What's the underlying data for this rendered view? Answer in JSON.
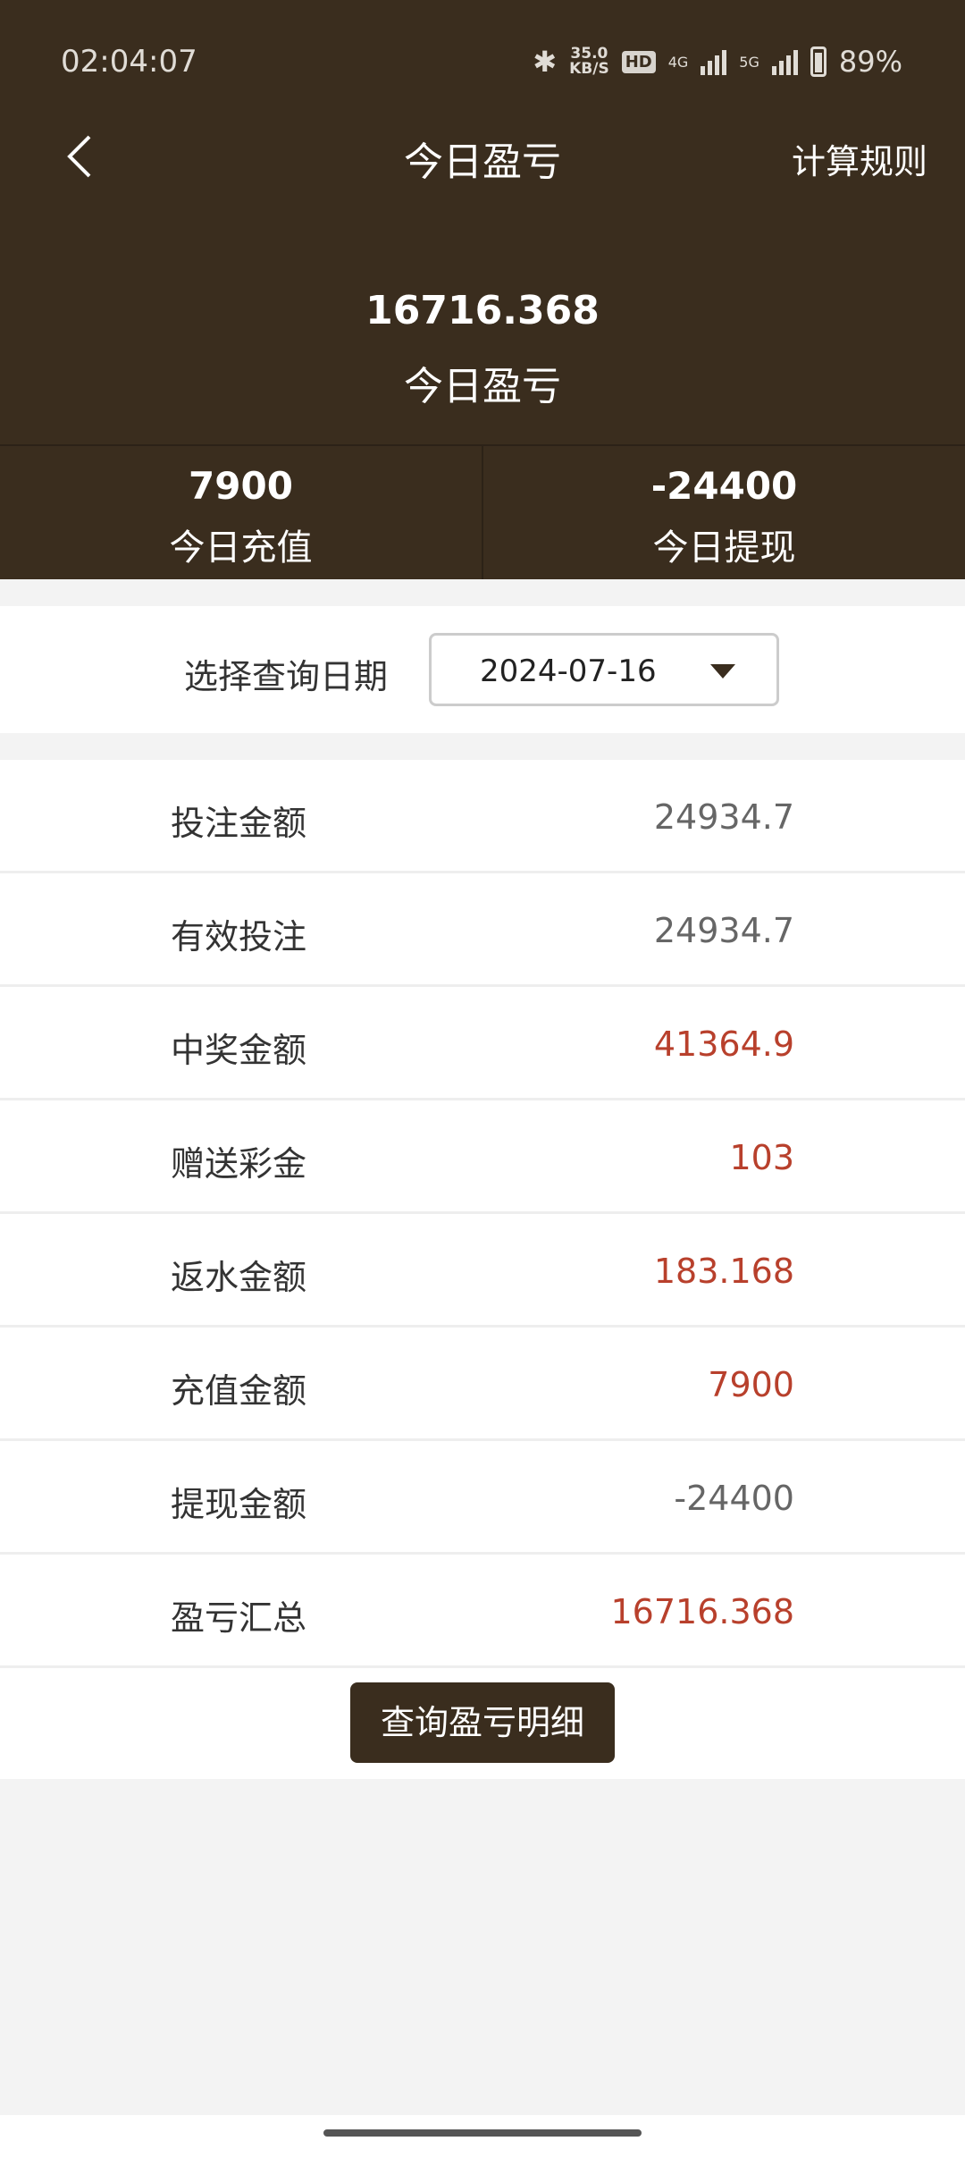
{
  "status_bar": {
    "time": "02:04:07",
    "net_speed": "35.0",
    "net_unit": "KB/S",
    "hd": "HD",
    "sim1": "4G",
    "sim2": "5G",
    "battery": "89%"
  },
  "header": {
    "title": "今日盈亏",
    "rules_label": "计算规则"
  },
  "summary": {
    "value": "16716.368",
    "label": "今日盈亏"
  },
  "stats": [
    {
      "value": "7900",
      "label": "今日充值"
    },
    {
      "value": "-24400",
      "label": "今日提现"
    }
  ],
  "date_filter": {
    "label": "选择查询日期",
    "value": "2024-07-16"
  },
  "rows": [
    {
      "label": "投注金额",
      "value": "24934.7",
      "highlight": false
    },
    {
      "label": "有效投注",
      "value": "24934.7",
      "highlight": false
    },
    {
      "label": "中奖金额",
      "value": "41364.9",
      "highlight": true
    },
    {
      "label": "赠送彩金",
      "value": "103",
      "highlight": true
    },
    {
      "label": "返水金额",
      "value": "183.168",
      "highlight": true
    },
    {
      "label": "充值金额",
      "value": "7900",
      "highlight": true
    },
    {
      "label": "提现金额",
      "value": "-24400",
      "highlight": false
    },
    {
      "label": "盈亏汇总",
      "value": "16716.368",
      "highlight": true
    }
  ],
  "detail_button": "查询盈亏明细",
  "colors": {
    "brand": "#3a2d1e",
    "highlight": "#b8402c",
    "muted": "#666666"
  }
}
